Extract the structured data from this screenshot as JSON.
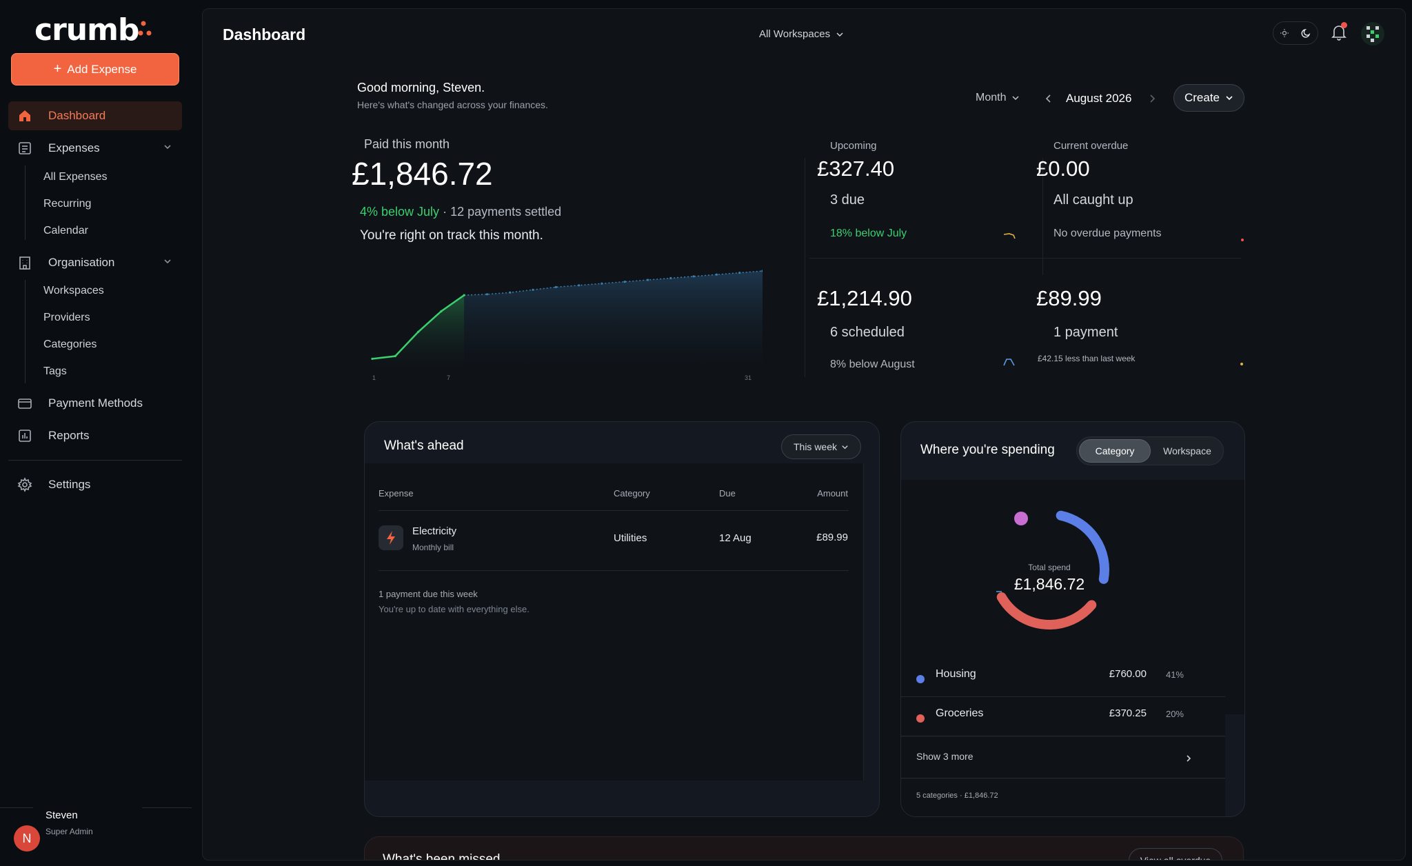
{
  "brand": {
    "name": "crumb",
    "accent": "#f2643f"
  },
  "sidebar": {
    "add_button": "Add Expense",
    "items": [
      {
        "label": "Dashboard",
        "icon": "home-icon"
      },
      {
        "label": "Expenses",
        "icon": "receipt-icon"
      },
      {
        "label": "Organisation",
        "icon": "building-icon"
      },
      {
        "label": "Payment Methods",
        "icon": "card-icon"
      },
      {
        "label": "Reports",
        "icon": "bar-chart-icon"
      },
      {
        "label": "Settings",
        "icon": "gear-icon"
      }
    ],
    "expenses_sub": [
      "All Expenses",
      "Recurring",
      "Calendar"
    ],
    "organisation_sub": [
      "Workspaces",
      "Providers",
      "Categories",
      "Tags"
    ],
    "user": {
      "name": "Steven",
      "role": "Super Admin",
      "initial": "N"
    }
  },
  "header": {
    "title": "Dashboard",
    "workspace": "All Workspaces"
  },
  "greeting": {
    "title": "Good morning, Steven.",
    "subtitle": "Here's what's changed across your finances."
  },
  "period": {
    "unit": "Month",
    "label": "August 2026",
    "create": "Create"
  },
  "paid": {
    "label": "Paid this month",
    "amount": "£1,846.72",
    "delta": "4% below July",
    "settled": "· 12 payments settled",
    "note": "You're right on track this month.",
    "axis": [
      "1",
      "7",
      "31"
    ],
    "series": [
      0.02,
      0.05,
      0.32,
      0.55,
      0.73,
      0.74,
      0.76,
      0.79,
      0.82,
      0.84,
      0.86,
      0.88,
      0.9,
      0.92,
      0.94,
      0.96,
      0.98,
      1.0
    ]
  },
  "stats": {
    "upcoming": {
      "label": "Upcoming",
      "amount": "£327.40",
      "sub": "3 due",
      "foot": "18% below July"
    },
    "overdue": {
      "label": "Current overdue",
      "amount": "£0.00",
      "sub": "All caught up",
      "foot": "No overdue payments"
    },
    "scheduled": {
      "amount": "£1,214.90",
      "sub": "6 scheduled",
      "foot": "8% below August"
    },
    "payment": {
      "amount": "£89.99",
      "sub": "1 payment",
      "foot": "£42.15 less than last week"
    }
  },
  "ahead": {
    "title": "What's ahead",
    "filter": "This week",
    "columns": [
      "Expense",
      "Category",
      "Due",
      "Amount"
    ],
    "rows": [
      {
        "name": "Electricity",
        "sub": "Monthly bill",
        "category": "Utilities",
        "due": "12 Aug",
        "amount": "£89.99"
      }
    ],
    "foot1": "1 payment due this week",
    "foot2": "You're up to date with everything else."
  },
  "spending": {
    "title": "Where you're spending",
    "tabs": [
      "Category",
      "Workspace"
    ],
    "total_label": "Total spend",
    "total": "£1,846.72",
    "categories": [
      {
        "name": "Housing",
        "value": "£760.00",
        "pct": "41%",
        "color": "#5b7fe6"
      },
      {
        "name": "Groceries",
        "value": "£370.25",
        "pct": "20%",
        "color": "#e0605a"
      }
    ],
    "show_more": "Show 3 more",
    "summary": "5 categories · £1,846.72"
  },
  "missed": {
    "title": "What's been missed",
    "button": "View all overdue"
  }
}
